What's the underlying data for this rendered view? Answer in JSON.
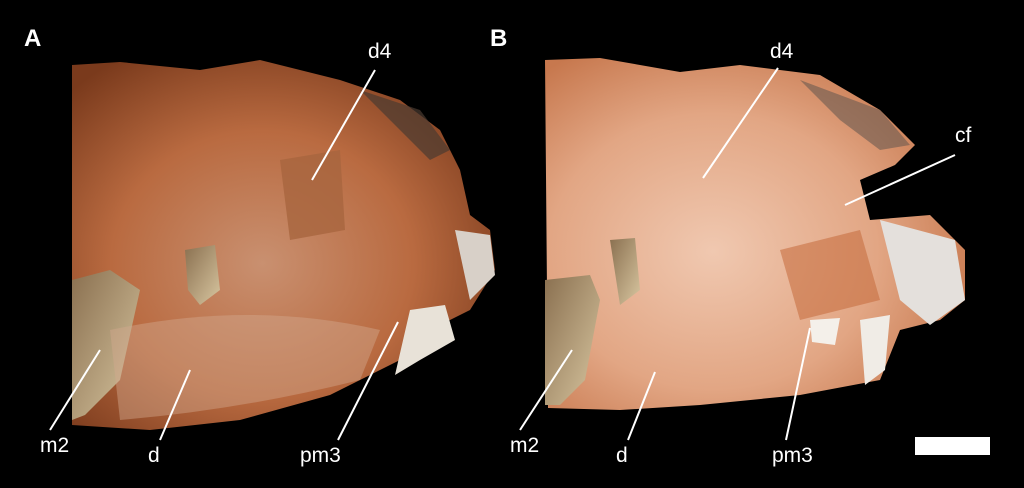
{
  "panels": [
    {
      "label": "A",
      "annotations": [
        "d4",
        "m2",
        "d",
        "pm3"
      ]
    },
    {
      "label": "B",
      "annotations": [
        "d4",
        "cf",
        "m2",
        "d",
        "pm3"
      ]
    }
  ]
}
